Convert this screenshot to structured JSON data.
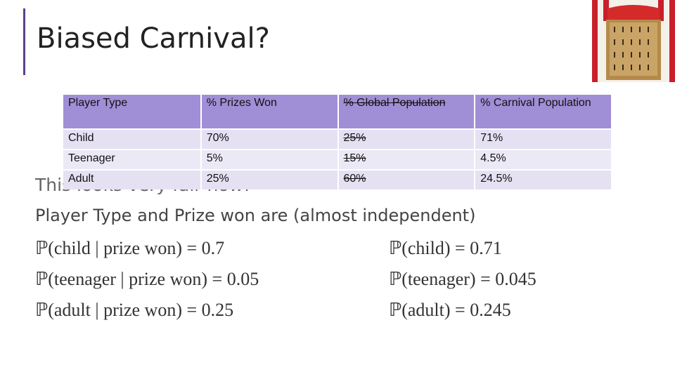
{
  "title": "Biased Carnival?",
  "table": {
    "header": [
      "Player Type",
      "% Prizes Won",
      "% Global Population",
      "% Carnival Population"
    ],
    "rows": [
      [
        "Child",
        "70%",
        "25%",
        "71%"
      ],
      [
        "Teenager",
        "5%",
        "15%",
        "4.5%"
      ],
      [
        "Adult",
        "25%",
        "60%",
        "24.5%"
      ]
    ]
  },
  "hidden_text": "This looks very fair now!",
  "statement": "Player Type and Prize won are (almost independent)",
  "formulas_left": [
    "ℙ(child | prize won) = 0.7",
    "ℙ(teenager | prize won) = 0.05",
    "ℙ(adult | prize won) = 0.25"
  ],
  "formulas_right": [
    "ℙ(child) = 0.71",
    "ℙ(teenager) = 0.045",
    "ℙ(adult) = 0.245"
  ]
}
